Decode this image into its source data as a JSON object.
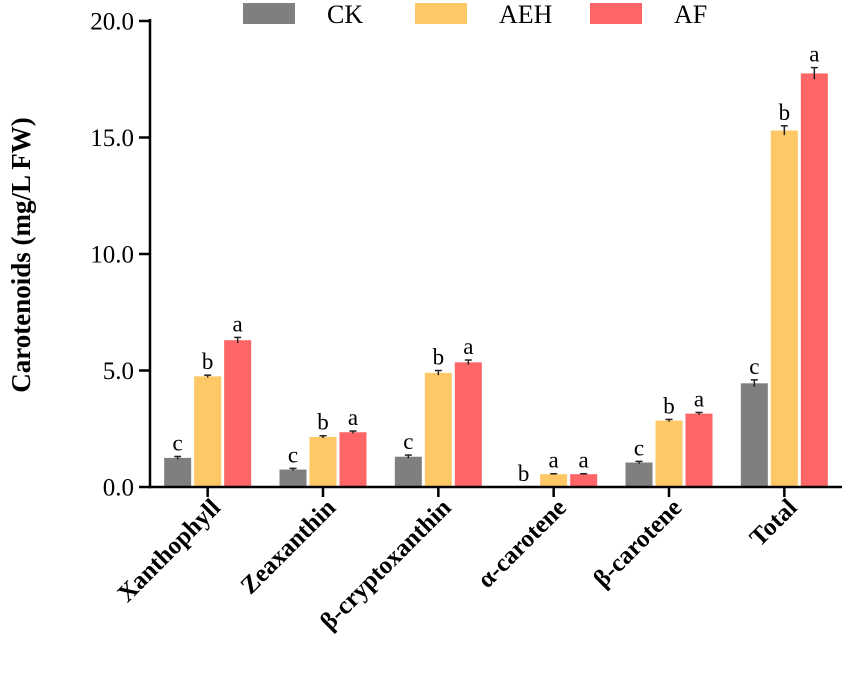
{
  "chart_data": {
    "type": "bar",
    "title": "",
    "xlabel": "",
    "ylabel": "Carotenoids (mg/L FW)",
    "ylim": [
      0,
      20
    ],
    "yticks": [
      0,
      5,
      10,
      15,
      20
    ],
    "ytick_labels": [
      "0.0",
      "5.0",
      "10.0",
      "15.0",
      "20.0"
    ],
    "grid": false,
    "legend_position": "top",
    "categories": [
      "Xanthophyll",
      "Zeaxanthin",
      "β-cryptoxanthin",
      "α-carotene",
      "β-carotene",
      "Total"
    ],
    "series": [
      {
        "name": "CK",
        "color": "#7f7f7f",
        "values": [
          1.25,
          0.75,
          1.3,
          0.0,
          1.05,
          4.45
        ],
        "errors": [
          0.06,
          0.05,
          0.07,
          0.0,
          0.05,
          0.15
        ],
        "significance": [
          "c",
          "c",
          "c",
          "b",
          "c",
          "c"
        ]
      },
      {
        "name": "AEH",
        "color": "#ffc866",
        "values": [
          4.75,
          2.15,
          4.9,
          0.55,
          2.85,
          15.3
        ],
        "errors": [
          0.05,
          0.05,
          0.1,
          0.02,
          0.05,
          0.2
        ],
        "significance": [
          "b",
          "b",
          "b",
          "a",
          "b",
          "b"
        ]
      },
      {
        "name": "AF",
        "color": "#fe6566",
        "values": [
          6.3,
          2.35,
          5.35,
          0.55,
          3.15,
          17.75
        ],
        "errors": [
          0.12,
          0.05,
          0.1,
          0.02,
          0.05,
          0.25
        ],
        "significance": [
          "a",
          "a",
          "a",
          "a",
          "a",
          "a"
        ]
      }
    ]
  }
}
